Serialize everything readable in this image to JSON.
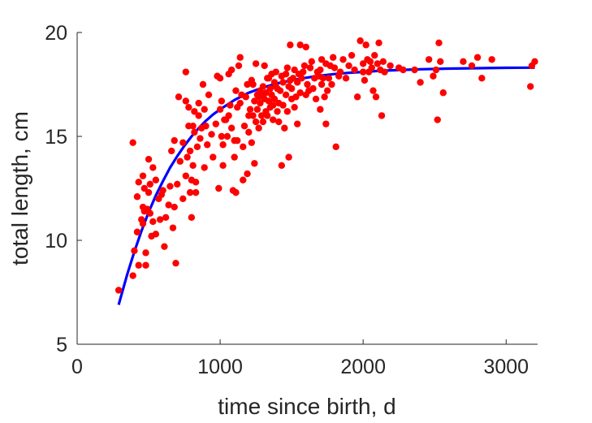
{
  "chart_data": {
    "type": "scatter",
    "xlabel": "time since birth, d",
    "ylabel": "total length, cm",
    "xlim": [
      0,
      3220
    ],
    "ylim": [
      5,
      20
    ],
    "xticks": [
      0,
      1000,
      2000,
      3000
    ],
    "yticks": [
      5,
      10,
      15,
      20
    ],
    "grid": false,
    "series": [
      {
        "type": "scatter",
        "color": "#ff0000",
        "points": [
          [
            290,
            7.6
          ],
          [
            390,
            14.7
          ],
          [
            390,
            8.3
          ],
          [
            400,
            9.5
          ],
          [
            420,
            10.4
          ],
          [
            420,
            12.1
          ],
          [
            430,
            12.8
          ],
          [
            430,
            8.8
          ],
          [
            450,
            11.0
          ],
          [
            460,
            10.8
          ],
          [
            460,
            13.1
          ],
          [
            460,
            11.6
          ],
          [
            470,
            11.4
          ],
          [
            470,
            12.5
          ],
          [
            480,
            9.4
          ],
          [
            480,
            8.8
          ],
          [
            490,
            11.5
          ],
          [
            500,
            12.3
          ],
          [
            500,
            13.9
          ],
          [
            510,
            11.3
          ],
          [
            510,
            12.7
          ],
          [
            520,
            10.2
          ],
          [
            530,
            10.9
          ],
          [
            530,
            13.5
          ],
          [
            550,
            12.9
          ],
          [
            550,
            10.3
          ],
          [
            570,
            12.0
          ],
          [
            580,
            11.0
          ],
          [
            590,
            12.2
          ],
          [
            600,
            12.4
          ],
          [
            610,
            9.7
          ],
          [
            620,
            11.1
          ],
          [
            640,
            11.7
          ],
          [
            650,
            12.6
          ],
          [
            660,
            14.3
          ],
          [
            670,
            10.6
          ],
          [
            680,
            11.6
          ],
          [
            680,
            14.8
          ],
          [
            690,
            8.9
          ],
          [
            700,
            12.7
          ],
          [
            710,
            16.9
          ],
          [
            720,
            13.8
          ],
          [
            740,
            12.0
          ],
          [
            740,
            14.7
          ],
          [
            760,
            13.1
          ],
          [
            760,
            16.7
          ],
          [
            760,
            18.1
          ],
          [
            770,
            14.0
          ],
          [
            780,
            15.5
          ],
          [
            780,
            16.4
          ],
          [
            790,
            12.3
          ],
          [
            790,
            14.3
          ],
          [
            800,
            11.1
          ],
          [
            800,
            12.9
          ],
          [
            810,
            13.6
          ],
          [
            810,
            15.5
          ],
          [
            820,
            16.2
          ],
          [
            820,
            15.2
          ],
          [
            830,
            12.8
          ],
          [
            830,
            12.3
          ],
          [
            840,
            14.5
          ],
          [
            850,
            16.0
          ],
          [
            850,
            16.6
          ],
          [
            860,
            14.9
          ],
          [
            870,
            15.4
          ],
          [
            880,
            17.5
          ],
          [
            890,
            13.5
          ],
          [
            890,
            16.3
          ],
          [
            900,
            15.5
          ],
          [
            910,
            14.6
          ],
          [
            920,
            17.0
          ],
          [
            940,
            15.1
          ],
          [
            950,
            14.0
          ],
          [
            970,
            15.6
          ],
          [
            980,
            17.9
          ],
          [
            990,
            12.5
          ],
          [
            1000,
            16.3
          ],
          [
            1000,
            17.8
          ],
          [
            1010,
            15.0
          ],
          [
            1010,
            16.7
          ],
          [
            1020,
            13.6
          ],
          [
            1020,
            14.6
          ],
          [
            1030,
            15.8
          ],
          [
            1040,
            15.8
          ],
          [
            1050,
            15.0
          ],
          [
            1060,
            16.0
          ],
          [
            1060,
            18.0
          ],
          [
            1070,
            16.5
          ],
          [
            1080,
            15.4
          ],
          [
            1080,
            18.2
          ],
          [
            1090,
            12.4
          ],
          [
            1100,
            14.8
          ],
          [
            1100,
            14.0
          ],
          [
            1110,
            12.3
          ],
          [
            1110,
            17.2
          ],
          [
            1120,
            14.8
          ],
          [
            1120,
            16.4
          ],
          [
            1130,
            18.4
          ],
          [
            1140,
            16.6
          ],
          [
            1140,
            18.8
          ],
          [
            1150,
            17.0
          ],
          [
            1160,
            12.9
          ],
          [
            1160,
            14.5
          ],
          [
            1170,
            15.5
          ],
          [
            1180,
            16.9
          ],
          [
            1190,
            17.5
          ],
          [
            1190,
            13.2
          ],
          [
            1200,
            16.0
          ],
          [
            1200,
            15.2
          ],
          [
            1210,
            16.3
          ],
          [
            1220,
            17.7
          ],
          [
            1220,
            14.7
          ],
          [
            1230,
            17.5
          ],
          [
            1230,
            16.0
          ],
          [
            1240,
            16.7
          ],
          [
            1240,
            13.7
          ],
          [
            1250,
            15.7
          ],
          [
            1250,
            18.5
          ],
          [
            1260,
            17.0
          ],
          [
            1260,
            16.3
          ],
          [
            1270,
            16.9
          ],
          [
            1270,
            15.4
          ],
          [
            1280,
            17.2
          ],
          [
            1280,
            16.6
          ],
          [
            1290,
            17.0
          ],
          [
            1290,
            16.0
          ],
          [
            1300,
            17.4
          ],
          [
            1300,
            15.7
          ],
          [
            1310,
            16.8
          ],
          [
            1310,
            18.4
          ],
          [
            1320,
            17.1
          ],
          [
            1320,
            16.2
          ],
          [
            1330,
            17.8
          ],
          [
            1330,
            16.0
          ],
          [
            1340,
            16.7
          ],
          [
            1340,
            17.8
          ],
          [
            1350,
            17.3
          ],
          [
            1350,
            16.4
          ],
          [
            1360,
            17.0
          ],
          [
            1360,
            18.0
          ],
          [
            1370,
            16.5
          ],
          [
            1370,
            15.8
          ],
          [
            1380,
            17.6
          ],
          [
            1380,
            16.8
          ],
          [
            1390,
            17.4
          ],
          [
            1390,
            18.1
          ],
          [
            1400,
            16.2
          ],
          [
            1400,
            17.3
          ],
          [
            1410,
            16.6
          ],
          [
            1410,
            15.7
          ],
          [
            1420,
            17.2
          ],
          [
            1430,
            17.9
          ],
          [
            1430,
            13.6
          ],
          [
            1440,
            16.5
          ],
          [
            1440,
            17.6
          ],
          [
            1450,
            15.4
          ],
          [
            1460,
            18.0
          ],
          [
            1460,
            17.0
          ],
          [
            1470,
            16.2
          ],
          [
            1470,
            18.3
          ],
          [
            1480,
            17.4
          ],
          [
            1480,
            14.0
          ],
          [
            1490,
            17.7
          ],
          [
            1490,
            19.4
          ],
          [
            1500,
            16.8
          ],
          [
            1500,
            17.3
          ],
          [
            1510,
            17.8
          ],
          [
            1520,
            16.4
          ],
          [
            1520,
            18.2
          ],
          [
            1530,
            16.9
          ],
          [
            1540,
            17.6
          ],
          [
            1540,
            15.6
          ],
          [
            1550,
            18.0
          ],
          [
            1560,
            19.4
          ],
          [
            1560,
            17.1
          ],
          [
            1570,
            17.8
          ],
          [
            1580,
            18.1
          ],
          [
            1590,
            18.4
          ],
          [
            1600,
            17.0
          ],
          [
            1600,
            19.3
          ],
          [
            1610,
            17.5
          ],
          [
            1620,
            17.2
          ],
          [
            1630,
            18.3
          ],
          [
            1640,
            18.6
          ],
          [
            1650,
            17.3
          ],
          [
            1660,
            17.8
          ],
          [
            1670,
            16.8
          ],
          [
            1680,
            18.1
          ],
          [
            1690,
            17.9
          ],
          [
            1700,
            18.2
          ],
          [
            1700,
            16.3
          ],
          [
            1710,
            17.5
          ],
          [
            1710,
            18.7
          ],
          [
            1720,
            17.8
          ],
          [
            1730,
            16.9
          ],
          [
            1740,
            18.5
          ],
          [
            1740,
            15.6
          ],
          [
            1750,
            17.2
          ],
          [
            1760,
            17.8
          ],
          [
            1770,
            18.4
          ],
          [
            1780,
            17.5
          ],
          [
            1790,
            18.8
          ],
          [
            1800,
            18.3
          ],
          [
            1810,
            14.5
          ],
          [
            1830,
            17.9
          ],
          [
            1840,
            18.1
          ],
          [
            1860,
            18.7
          ],
          [
            1880,
            17.8
          ],
          [
            1900,
            18.4
          ],
          [
            1920,
            18.9
          ],
          [
            1940,
            18.2
          ],
          [
            1960,
            16.9
          ],
          [
            1980,
            19.6
          ],
          [
            2000,
            18.5
          ],
          [
            2000,
            18.1
          ],
          [
            2010,
            17.7
          ],
          [
            2020,
            19.4
          ],
          [
            2030,
            18.7
          ],
          [
            2040,
            18.1
          ],
          [
            2050,
            18.6
          ],
          [
            2060,
            18.3
          ],
          [
            2070,
            17.2
          ],
          [
            2080,
            18.9
          ],
          [
            2090,
            16.9
          ],
          [
            2100,
            18.5
          ],
          [
            2110,
            19.5
          ],
          [
            2120,
            18.2
          ],
          [
            2130,
            16.0
          ],
          [
            2140,
            18.6
          ],
          [
            2150,
            18.1
          ],
          [
            2190,
            18.4
          ],
          [
            2250,
            18.3
          ],
          [
            2280,
            18.2
          ],
          [
            2360,
            18.2
          ],
          [
            2400,
            17.6
          ],
          [
            2460,
            18.7
          ],
          [
            2490,
            17.9
          ],
          [
            2510,
            18.2
          ],
          [
            2520,
            15.8
          ],
          [
            2530,
            19.5
          ],
          [
            2540,
            18.6
          ],
          [
            2560,
            17.1
          ],
          [
            2700,
            18.6
          ],
          [
            2760,
            18.4
          ],
          [
            2800,
            18.8
          ],
          [
            2830,
            17.8
          ],
          [
            2900,
            18.7
          ],
          [
            3170,
            17.4
          ],
          [
            3180,
            18.4
          ],
          [
            3200,
            18.6
          ]
        ]
      },
      {
        "type": "line",
        "color": "#0000ff",
        "x": [
          290,
          350,
          400,
          450,
          500,
          550,
          600,
          650,
          700,
          750,
          800,
          850,
          900,
          950,
          1000,
          1100,
          1200,
          1300,
          1400,
          1500,
          1600,
          1700,
          1800,
          1900,
          2000,
          2100,
          2200,
          2400,
          2600,
          2800,
          3000,
          3200
        ],
        "y": [
          6.9,
          8.35,
          9.45,
          10.45,
          11.35,
          12.15,
          12.85,
          13.5,
          14.05,
          14.55,
          15.0,
          15.4,
          15.75,
          16.05,
          16.3,
          16.75,
          17.1,
          17.35,
          17.55,
          17.7,
          17.82,
          17.92,
          18.0,
          18.06,
          18.1,
          18.15,
          18.18,
          18.23,
          18.26,
          18.28,
          18.3,
          18.31
        ]
      }
    ]
  }
}
